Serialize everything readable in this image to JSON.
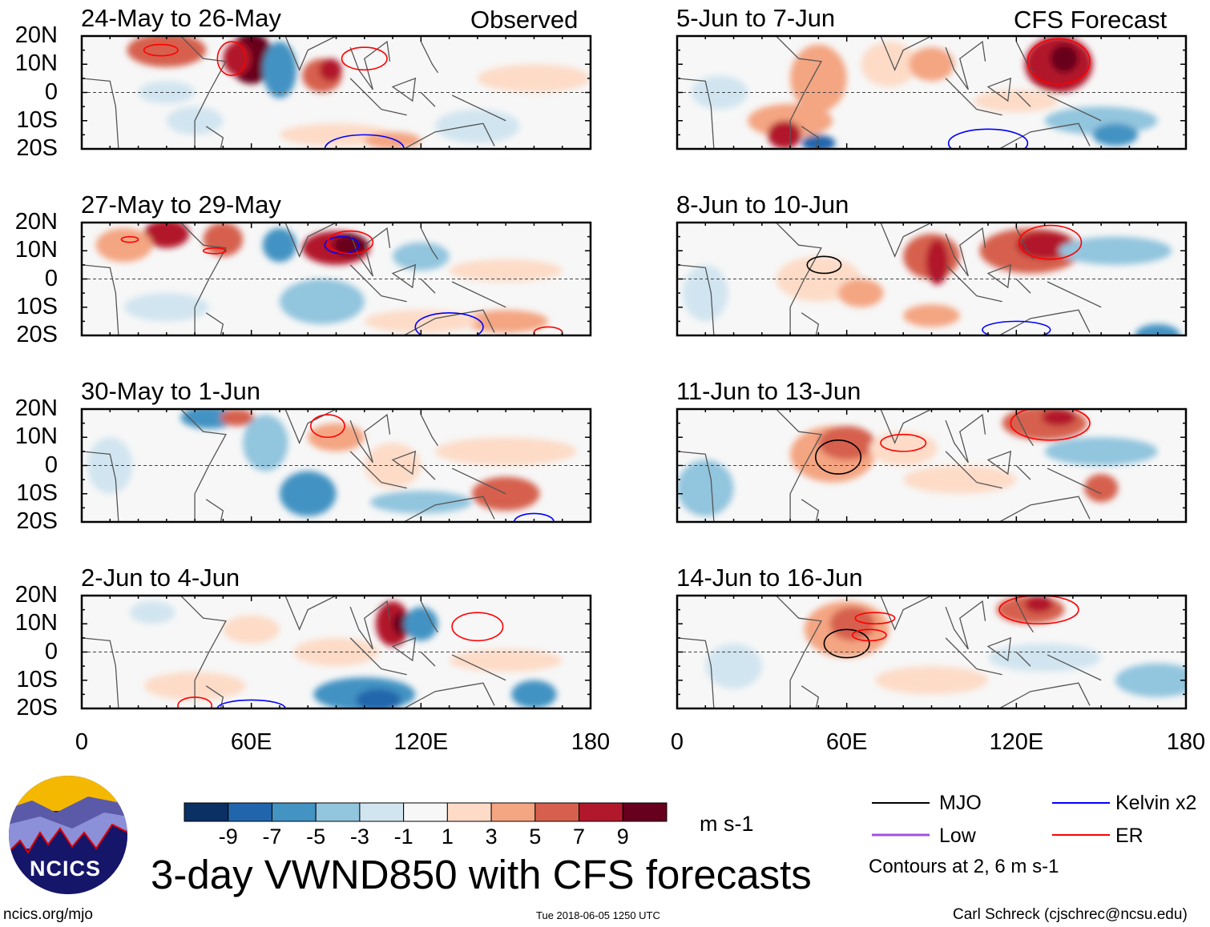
{
  "chart_data": {
    "type": "heatmap",
    "title": "3-day VWND850 with CFS forecasts",
    "variable": "850-hPa meridional wind anomaly",
    "units": "m s-1",
    "lat_ticks": [
      "20N",
      "10N",
      "0",
      "10S",
      "20S"
    ],
    "lon_ticks": [
      "0",
      "60E",
      "120E",
      "180"
    ],
    "lat_range": [
      -20,
      20
    ],
    "lon_range": [
      0,
      180
    ],
    "column_labels": {
      "left": "Observed",
      "right": "CFS Forecast"
    },
    "panels": [
      {
        "title": "24-May to 26-May",
        "column": "left"
      },
      {
        "title": "27-May to 29-May",
        "column": "left"
      },
      {
        "title": "30-May to 1-Jun",
        "column": "left"
      },
      {
        "title": "2-Jun to 4-Jun",
        "column": "left"
      },
      {
        "title": "5-Jun to 7-Jun",
        "column": "right"
      },
      {
        "title": "8-Jun to 10-Jun",
        "column": "right"
      },
      {
        "title": "11-Jun to 13-Jun",
        "column": "right"
      },
      {
        "title": "14-Jun to 16-Jun",
        "column": "right"
      }
    ],
    "colorbar": {
      "labels": [
        "-9",
        "-7",
        "-5",
        "-3",
        "-1",
        "1",
        "3",
        "5",
        "7",
        "9"
      ],
      "colors": [
        "#0a3064",
        "#2166ac",
        "#4393c3",
        "#92c5de",
        "#d1e5f0",
        "#f7f7f7",
        "#fddbc7",
        "#f4a582",
        "#d6604d",
        "#b2182b",
        "#67001f"
      ],
      "units": "m s-1"
    },
    "legend": [
      {
        "label": "MJO",
        "color": "#000000"
      },
      {
        "label": "Kelvin x2",
        "color": "#0000ff"
      },
      {
        "label": "Low",
        "color": "#a050e0"
      },
      {
        "label": "ER",
        "color": "#ff0000"
      }
    ],
    "contour_note": "Contours at 2, 6 m s-1"
  },
  "footer": {
    "logo_text": "NCICS",
    "url": "ncics.org/mjo",
    "timestamp": "Tue 2018-06-05 1250 UTC",
    "credit": "Carl Schreck (cjschrec@ncsu.edu)"
  }
}
